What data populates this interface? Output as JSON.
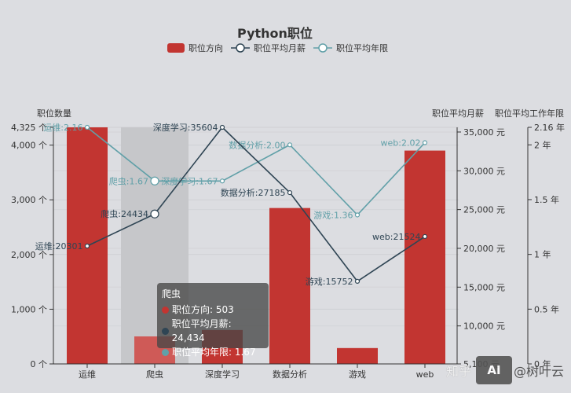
{
  "chart_data": {
    "type": "bar+line",
    "title": "Python职位",
    "categories": [
      "运维",
      "爬虫",
      "深度学习",
      "数据分析",
      "游戏",
      "web"
    ],
    "series": [
      {
        "name": "职位方向",
        "type": "bar",
        "axis": "left",
        "color": "#c23531",
        "values": [
          4325,
          503,
          620,
          2850,
          290,
          3900
        ]
      },
      {
        "name": "职位平均月薪",
        "type": "line",
        "axis": "right1",
        "color": "#2f4554",
        "values": [
          20301,
          24434,
          35604,
          27185,
          15752,
          21524
        ],
        "labels": [
          "运维:20301",
          "爬虫:24434",
          "深度学习:35604",
          "数据分析:27185",
          "游戏:15752",
          "web:21524"
        ]
      },
      {
        "name": "职位平均年限",
        "type": "line",
        "axis": "right2",
        "color": "#61a0a8",
        "values": [
          2.16,
          1.67,
          1.67,
          2.0,
          1.36,
          2.02
        ],
        "labels": [
          "运维:2.16",
          "爬虫:1.67",
          "深度学习:1.67",
          "数据分析:2.00",
          "游戏:1.36",
          "web:2.02"
        ]
      }
    ],
    "axes": {
      "left": {
        "name": "职位数量",
        "min": 0,
        "max": 4325,
        "ticks": [
          0,
          1000,
          2000,
          3000,
          4000,
          4325
        ],
        "tick_labels": [
          "0 个",
          "1,000 个",
          "2,000 个",
          "3,000 个",
          "4,000 个",
          "4,325 个"
        ]
      },
      "right1": {
        "name": "职位平均月薪",
        "min": 5100,
        "max": 35604,
        "ticks": [
          5100,
          10000,
          15000,
          20000,
          25000,
          30000,
          35000
        ],
        "tick_labels": [
          "5,100 元",
          "10,000 元",
          "15,000 元",
          "20,000 元",
          "25,000 元",
          "30,000 元",
          "35,000 元"
        ]
      },
      "right2": {
        "name": "职位平均工作年限",
        "min": 0,
        "max": 2.16,
        "ticks": [
          0,
          0.5,
          1,
          1.5,
          2,
          2.16
        ],
        "tick_labels": [
          "0 年",
          "0.5 年",
          "1 年",
          "1.5 年",
          "2 年",
          "2.16 年"
        ]
      }
    },
    "highlighted_category": "爬虫",
    "legend_position": "top"
  },
  "legend": {
    "items": [
      {
        "label": "职位方向",
        "color": "#c23531"
      },
      {
        "label": "职位平均月薪",
        "color": "#2f4554"
      },
      {
        "label": "职位平均年限",
        "color": "#61a0a8"
      }
    ]
  },
  "tooltip": {
    "title": "爬虫",
    "rows": [
      {
        "text": "职位方向: 503",
        "color": "#c23531"
      },
      {
        "text": "职位平均月薪: 24,434",
        "color": "#2f4554"
      },
      {
        "text": "职位平均年限: 1.67",
        "color": "#61a0a8"
      }
    ]
  },
  "watermark": {
    "left": "知乎",
    "icon": "AI",
    "right": "@树叶云"
  }
}
